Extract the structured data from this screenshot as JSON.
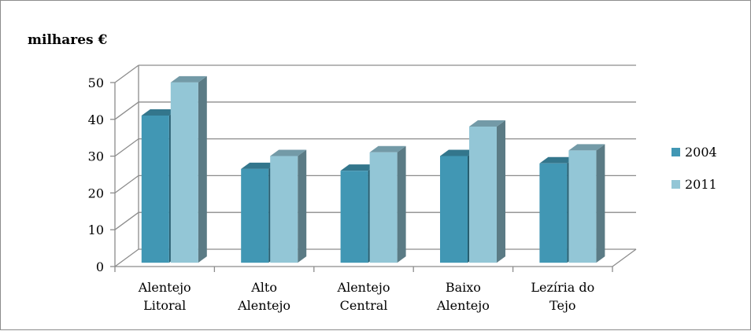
{
  "chart_data": {
    "type": "bar",
    "unit_label": "milhares €",
    "categories": [
      [
        "Alentejo",
        "Litoral"
      ],
      [
        "Alto",
        "Alentejo"
      ],
      [
        "Alentejo",
        "Central"
      ],
      [
        "Baixo",
        "Alentejo"
      ],
      [
        "Lezíria do",
        "Tejo"
      ]
    ],
    "series": [
      {
        "name": "2004",
        "values": [
          40,
          25.5,
          25,
          29,
          27
        ],
        "color": "#4197b4"
      },
      {
        "name": "2011",
        "values": [
          49,
          29,
          30,
          37,
          30.5
        ],
        "color": "#93c6d6"
      }
    ],
    "ylim": [
      0,
      50
    ],
    "yticks": [
      "0",
      "10",
      "20",
      "30",
      "40",
      "50"
    ],
    "grid": true,
    "legend": "right",
    "three_d": true
  }
}
